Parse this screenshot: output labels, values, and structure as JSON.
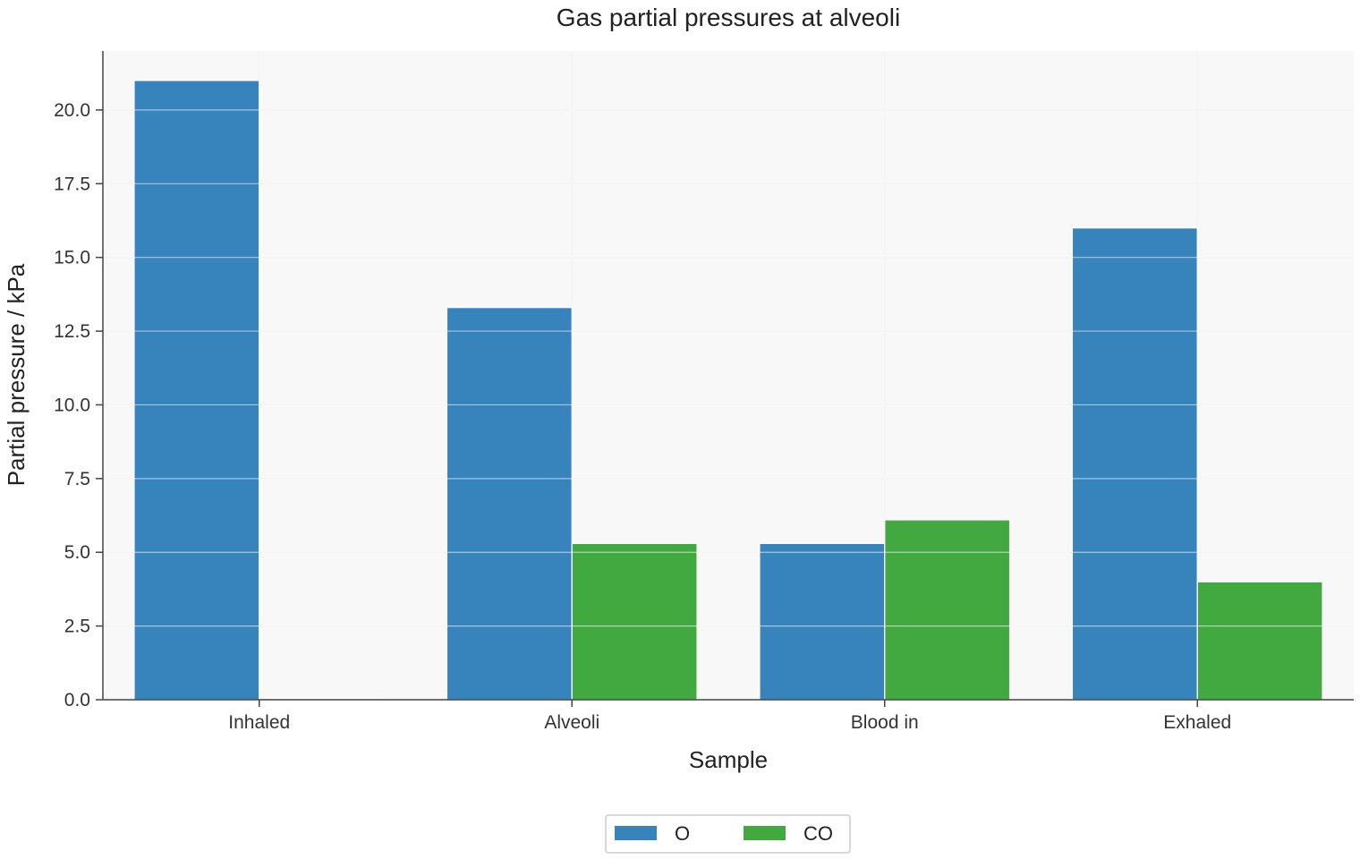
{
  "chart_data": {
    "type": "bar",
    "title": "Gas partial pressures at alveoli",
    "xlabel": "Sample",
    "ylabel": "Partial pressure / kPa",
    "categories": [
      "Inhaled",
      "Alveoli",
      "Blood in",
      "Exhaled"
    ],
    "series": [
      {
        "name": "O",
        "color": "#3783bb",
        "values": [
          21.0,
          13.3,
          5.3,
          16.0
        ]
      },
      {
        "name": "CO",
        "color": "#41a940",
        "values": [
          0.04,
          5.3,
          6.1,
          4.0
        ]
      }
    ],
    "ylim": [
      0,
      22
    ],
    "yticks": [
      "0.0",
      "2.5",
      "5.0",
      "7.5",
      "10.0",
      "12.5",
      "15.0",
      "17.5",
      "20.0"
    ],
    "grid": true,
    "legend_position": "bottom-center"
  }
}
